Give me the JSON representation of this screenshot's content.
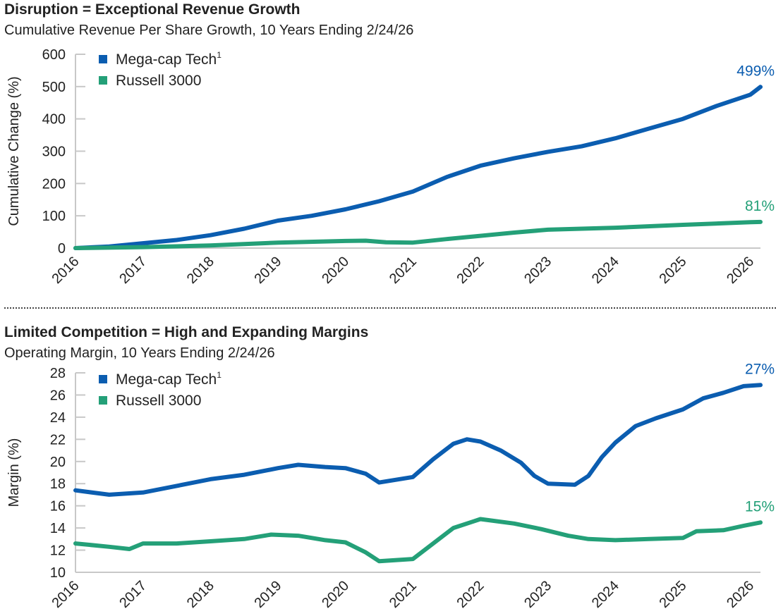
{
  "colors": {
    "mega": "#0b5db0",
    "russell": "#24a078",
    "axis": "#c8c8c8",
    "text": "#222222"
  },
  "chart_data": [
    {
      "type": "line",
      "title": "Disruption = Exceptional Revenue Growth",
      "subtitle": "Cumulative Revenue Per Share Growth, 10 Years Ending 2/24/26",
      "ylabel": "Cumulative Change (%)",
      "ylim": [
        0,
        600
      ],
      "yticks": [
        "0",
        "100",
        "200",
        "300",
        "400",
        "500",
        "600"
      ],
      "xlim": [
        2016,
        2026.15
      ],
      "xticks": [
        "2016",
        "2017",
        "2018",
        "2019",
        "2020",
        "2021",
        "2022",
        "2023",
        "2024",
        "2025",
        "2026"
      ],
      "grid": false,
      "legend": "top-left",
      "series": [
        {
          "name": "Mega-cap Tech",
          "name_sup": "1",
          "end_label": "499%",
          "x": [
            2016,
            2016.5,
            2017,
            2017.5,
            2018,
            2018.5,
            2019,
            2019.5,
            2020,
            2020.5,
            2021,
            2021.5,
            2022,
            2022.5,
            2023,
            2023.5,
            2024,
            2024.5,
            2025,
            2025.5,
            2026,
            2026.15
          ],
          "y": [
            0,
            5,
            15,
            25,
            40,
            60,
            85,
            100,
            120,
            145,
            175,
            220,
            255,
            278,
            298,
            315,
            340,
            370,
            400,
            440,
            475,
            499
          ]
        },
        {
          "name": "Russell 3000",
          "end_label": "81%",
          "x": [
            2016,
            2017,
            2018,
            2019,
            2020,
            2020.3,
            2020.6,
            2021,
            2021.5,
            2022,
            2022.5,
            2023,
            2024,
            2025,
            2026,
            2026.15
          ],
          "y": [
            0,
            3,
            8,
            17,
            22,
            23,
            18,
            17,
            28,
            38,
            48,
            57,
            63,
            72,
            80,
            81
          ]
        }
      ]
    },
    {
      "type": "line",
      "title": "Limited Competition = High and Expanding Margins",
      "subtitle": "Operating Margin, 10 Years Ending 2/24/26",
      "ylabel": "Margin (%)",
      "ylim": [
        10,
        28
      ],
      "yticks": [
        "10",
        "12",
        "14",
        "16",
        "18",
        "20",
        "22",
        "24",
        "26",
        "28"
      ],
      "xlim": [
        2016,
        2026.15
      ],
      "xticks": [
        "2016",
        "2017",
        "2018",
        "2019",
        "2020",
        "2021",
        "2022",
        "2023",
        "2024",
        "2025",
        "2026"
      ],
      "grid": false,
      "legend": "top-left",
      "series": [
        {
          "name": "Mega-cap Tech",
          "name_sup": "1",
          "end_label": "27%",
          "x": [
            2016,
            2016.5,
            2017,
            2017.5,
            2018,
            2018.5,
            2019,
            2019.3,
            2019.7,
            2020,
            2020.3,
            2020.5,
            2021,
            2021.3,
            2021.6,
            2021.8,
            2022,
            2022.3,
            2022.6,
            2022.8,
            2023,
            2023.4,
            2023.6,
            2023.8,
            2024,
            2024.3,
            2024.6,
            2025,
            2025.3,
            2025.6,
            2025.9,
            2026.15
          ],
          "y": [
            17.4,
            17.0,
            17.2,
            17.8,
            18.4,
            18.8,
            19.4,
            19.7,
            19.5,
            19.4,
            18.9,
            18.1,
            18.6,
            20.2,
            21.6,
            22.0,
            21.8,
            21.0,
            19.9,
            18.7,
            18.0,
            17.9,
            18.7,
            20.4,
            21.7,
            23.2,
            23.9,
            24.7,
            25.7,
            26.2,
            26.8,
            26.9
          ]
        },
        {
          "name": "Russell 3000",
          "end_label": "15%",
          "x": [
            2016,
            2016.5,
            2016.8,
            2017,
            2017.5,
            2018,
            2018.5,
            2018.9,
            2019.3,
            2019.7,
            2020,
            2020.3,
            2020.5,
            2021,
            2021.3,
            2021.6,
            2021.9,
            2022,
            2022.5,
            2022.9,
            2023.3,
            2023.6,
            2024,
            2024.5,
            2025,
            2025.2,
            2025.6,
            2025.9,
            2026.15
          ],
          "y": [
            12.6,
            12.3,
            12.1,
            12.6,
            12.6,
            12.8,
            13.0,
            13.4,
            13.3,
            12.9,
            12.7,
            11.8,
            11.0,
            11.2,
            12.6,
            14.0,
            14.6,
            14.8,
            14.4,
            13.9,
            13.3,
            13.0,
            12.9,
            13.0,
            13.1,
            13.7,
            13.8,
            14.2,
            14.5
          ]
        }
      ]
    }
  ]
}
